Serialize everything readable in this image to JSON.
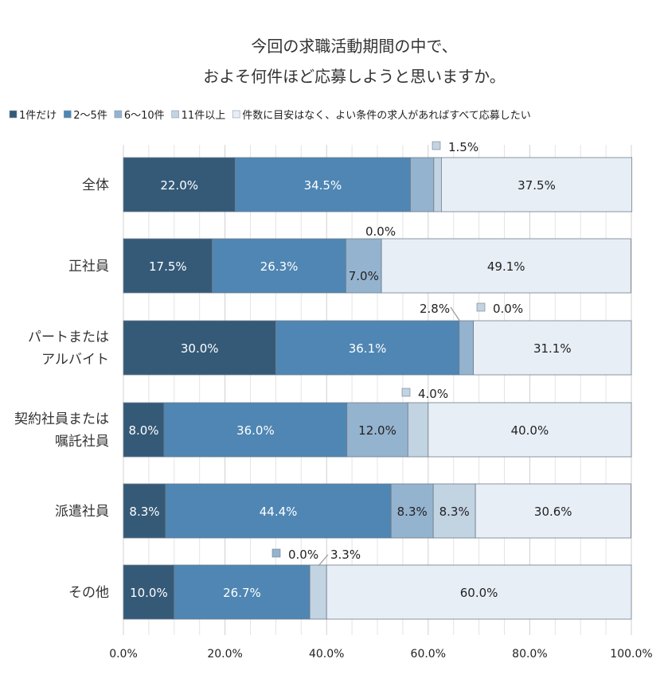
{
  "chart_data": {
    "type": "bar",
    "orientation": "horizontal-stacked-100",
    "title": [
      "今回の求職活動期間の中で、",
      "およそ何件ほど応募しようと思いますか。"
    ],
    "categories": [
      "全体",
      "正社員",
      "パートまたは\nアルバイト",
      "契約社員または\n嘱託社員",
      "派遣社員",
      "その他"
    ],
    "series": [
      {
        "name": "1件だけ",
        "color": "#355a78",
        "values": [
          22.0,
          17.5,
          30.0,
          8.0,
          8.3,
          10.0
        ]
      },
      {
        "name": "2～5件",
        "color": "#4f86b3",
        "values": [
          34.5,
          26.3,
          36.1,
          36.0,
          44.4,
          26.7
        ]
      },
      {
        "name": "6～10件",
        "color": "#94b3cf",
        "values": [
          4.6,
          7.0,
          2.8,
          12.0,
          8.3,
          0.0
        ]
      },
      {
        "name": "11件以上",
        "color": "#c2d3e2",
        "values": [
          1.5,
          0.0,
          0.0,
          4.0,
          8.3,
          3.3
        ]
      },
      {
        "name": "件数に目安はなく、よい条件の求人があればすべて応募したい",
        "color": "#e8eef6",
        "values": [
          37.5,
          49.1,
          31.1,
          40.0,
          30.6,
          60.0
        ]
      }
    ],
    "xlim": [
      0,
      100
    ],
    "xticks": [
      "0.0%",
      "20.0%",
      "40.0%",
      "60.0%",
      "80.0%",
      "100.0%"
    ],
    "grid": true,
    "legend": "top"
  }
}
